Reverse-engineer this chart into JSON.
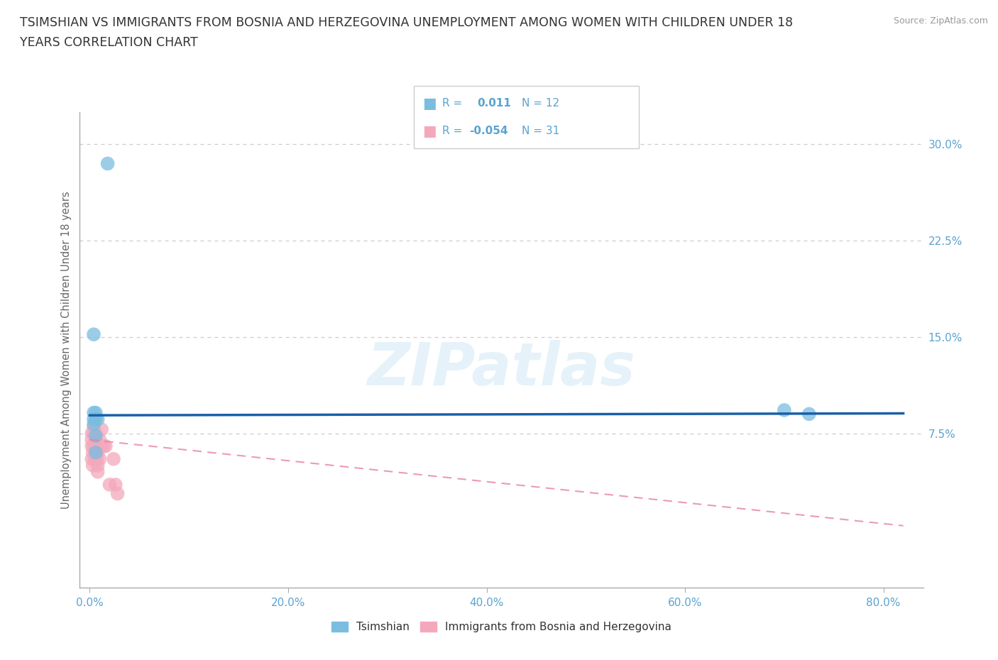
{
  "title_line1": "TSIMSHIAN VS IMMIGRANTS FROM BOSNIA AND HERZEGOVINA UNEMPLOYMENT AMONG WOMEN WITH CHILDREN UNDER 18",
  "title_line2": "YEARS CORRELATION CHART",
  "source": "Source: ZipAtlas.com",
  "ylabel": "Unemployment Among Women with Children Under 18 years",
  "xlabel_ticks": [
    "0.0%",
    "20.0%",
    "40.0%",
    "60.0%",
    "80.0%"
  ],
  "xlabel_vals": [
    0.0,
    0.2,
    0.4,
    0.6,
    0.8
  ],
  "ylabel_ticks": [
    "7.5%",
    "15.0%",
    "22.5%",
    "30.0%"
  ],
  "ylabel_vals": [
    0.075,
    0.15,
    0.225,
    0.3
  ],
  "xmin": -0.01,
  "xmax": 0.84,
  "ymin": -0.045,
  "ymax": 0.325,
  "watermark": "ZIPatlas",
  "legend_r1": "R =",
  "legend_v1": "0.011",
  "legend_n1": "N = 12",
  "legend_r2": "R =",
  "legend_v2": "-0.054",
  "legend_n2": "N = 31",
  "blue_color": "#7abde0",
  "pink_color": "#f4a8bc",
  "line_blue": "#1a5fa8",
  "line_pink": "#e8829e",
  "tsimshian_points_x": [
    0.018,
    0.004,
    0.004,
    0.004,
    0.004,
    0.006,
    0.006,
    0.008,
    0.7,
    0.725,
    0.006,
    0.006
  ],
  "tsimshian_points_y": [
    0.285,
    0.152,
    0.091,
    0.086,
    0.082,
    0.091,
    0.086,
    0.086,
    0.093,
    0.09,
    0.073,
    0.06
  ],
  "bosnia_points_x": [
    0.002,
    0.002,
    0.002,
    0.002,
    0.003,
    0.003,
    0.004,
    0.004,
    0.004,
    0.005,
    0.005,
    0.006,
    0.006,
    0.006,
    0.006,
    0.007,
    0.007,
    0.008,
    0.008,
    0.008,
    0.009,
    0.01,
    0.01,
    0.012,
    0.012,
    0.014,
    0.016,
    0.02,
    0.024,
    0.026,
    0.028
  ],
  "bosnia_points_y": [
    0.055,
    0.065,
    0.07,
    0.075,
    0.05,
    0.06,
    0.065,
    0.075,
    0.08,
    0.055,
    0.065,
    0.06,
    0.065,
    0.07,
    0.075,
    0.055,
    0.065,
    0.045,
    0.05,
    0.06,
    0.065,
    0.055,
    0.07,
    0.065,
    0.078,
    0.065,
    0.065,
    0.035,
    0.055,
    0.035,
    0.028
  ],
  "blue_trend_x": [
    0.0,
    0.82
  ],
  "blue_trend_y": [
    0.089,
    0.0905
  ],
  "pink_trend_x": [
    0.0,
    0.82
  ],
  "pink_trend_y": [
    0.07,
    0.003
  ],
  "grid_color": "#cccccc",
  "grid_dash": [
    4,
    4
  ],
  "bg_color": "#ffffff",
  "title_color": "#333333",
  "axis_label_color": "#666666",
  "tick_color": "#5ba3d0",
  "source_color": "#999999",
  "legend_label1": "Tsimshian",
  "legend_label2": "Immigrants from Bosnia and Herzegovina"
}
